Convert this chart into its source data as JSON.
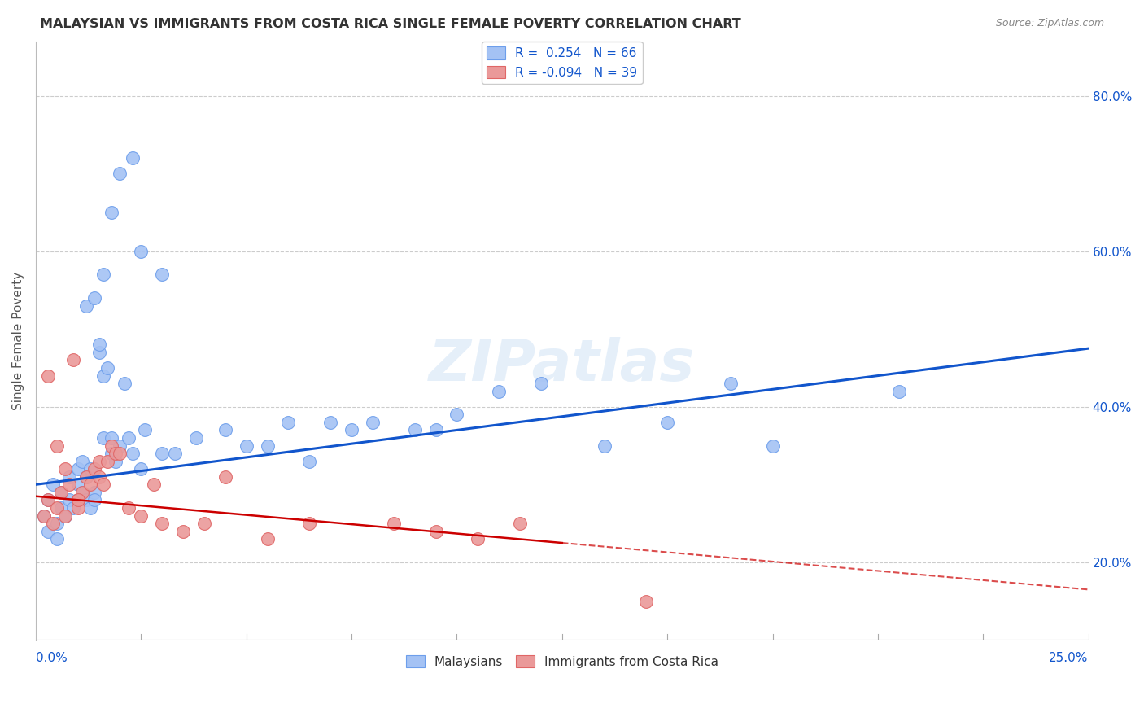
{
  "title": "MALAYSIAN VS IMMIGRANTS FROM COSTA RICA SINGLE FEMALE POVERTY CORRELATION CHART",
  "source": "Source: ZipAtlas.com",
  "ylabel": "Single Female Poverty",
  "blue_R": "0.254",
  "blue_N": "66",
  "pink_R": "-0.094",
  "pink_N": "39",
  "legend_label_blue": "Malaysians",
  "legend_label_pink": "Immigrants from Costa Rica",
  "blue_color": "#a4c2f4",
  "pink_color": "#ea9999",
  "blue_edge_color": "#6d9eeb",
  "pink_edge_color": "#e06666",
  "blue_line_color": "#1155cc",
  "pink_line_color": "#cc0000",
  "watermark": "ZIPatlas",
  "xlim": [
    0.0,
    25.0
  ],
  "ylim": [
    10.0,
    87.0
  ],
  "ytick_vals": [
    20,
    40,
    60,
    80
  ],
  "ytick_labels": [
    "20.0%",
    "40.0%",
    "60.0%",
    "80.0%"
  ],
  "blue_x": [
    0.2,
    0.3,
    0.3,
    0.4,
    0.5,
    0.5,
    0.6,
    0.6,
    0.7,
    0.8,
    0.8,
    0.9,
    1.0,
    1.0,
    1.0,
    1.1,
    1.1,
    1.2,
    1.2,
    1.3,
    1.3,
    1.4,
    1.4,
    1.5,
    1.5,
    1.6,
    1.6,
    1.7,
    1.8,
    1.8,
    1.9,
    2.0,
    2.1,
    2.2,
    2.3,
    2.5,
    2.6,
    3.0,
    3.3,
    3.8,
    4.5,
    5.0,
    5.5,
    6.0,
    6.5,
    7.0,
    7.5,
    8.0,
    9.0,
    9.5,
    10.0,
    11.0,
    12.0,
    13.5,
    15.0,
    16.5,
    17.5,
    20.5,
    1.2,
    1.4,
    1.6,
    1.8,
    2.0,
    2.3,
    2.5,
    3.0
  ],
  "blue_y": [
    26,
    24,
    28,
    30,
    25,
    23,
    29,
    27,
    26,
    28,
    31,
    27,
    30,
    32,
    28,
    29,
    33,
    31,
    28,
    32,
    27,
    29,
    28,
    47,
    48,
    44,
    36,
    45,
    34,
    36,
    33,
    35,
    43,
    36,
    34,
    32,
    37,
    34,
    34,
    36,
    37,
    35,
    35,
    38,
    33,
    38,
    37,
    38,
    37,
    37,
    39,
    42,
    43,
    35,
    38,
    43,
    35,
    42,
    53,
    54,
    57,
    65,
    70,
    72,
    60,
    57
  ],
  "pink_x": [
    0.2,
    0.3,
    0.4,
    0.5,
    0.6,
    0.7,
    0.8,
    0.9,
    1.0,
    1.0,
    1.1,
    1.2,
    1.3,
    1.4,
    1.5,
    1.5,
    1.6,
    1.7,
    1.8,
    1.9,
    2.0,
    2.2,
    2.5,
    2.8,
    3.0,
    3.5,
    4.0,
    4.5,
    5.5,
    6.5,
    8.5,
    9.5,
    10.5,
    11.5,
    14.5,
    0.3,
    0.5,
    0.7,
    1.0
  ],
  "pink_y": [
    26,
    28,
    25,
    27,
    29,
    26,
    30,
    46,
    28,
    27,
    29,
    31,
    30,
    32,
    31,
    33,
    30,
    33,
    35,
    34,
    34,
    27,
    26,
    30,
    25,
    24,
    25,
    31,
    23,
    25,
    25,
    24,
    23,
    25,
    15,
    44,
    35,
    32,
    28
  ],
  "blue_trend_x0": 0.0,
  "blue_trend_x1": 25.0,
  "blue_trend_y0": 30.0,
  "blue_trend_y1": 47.5,
  "pink_solid_x0": 0.0,
  "pink_solid_x1": 12.5,
  "pink_solid_y0": 28.5,
  "pink_solid_y1": 22.5,
  "pink_dash_x0": 12.5,
  "pink_dash_x1": 25.0,
  "pink_dash_y0": 22.5,
  "pink_dash_y1": 16.5
}
